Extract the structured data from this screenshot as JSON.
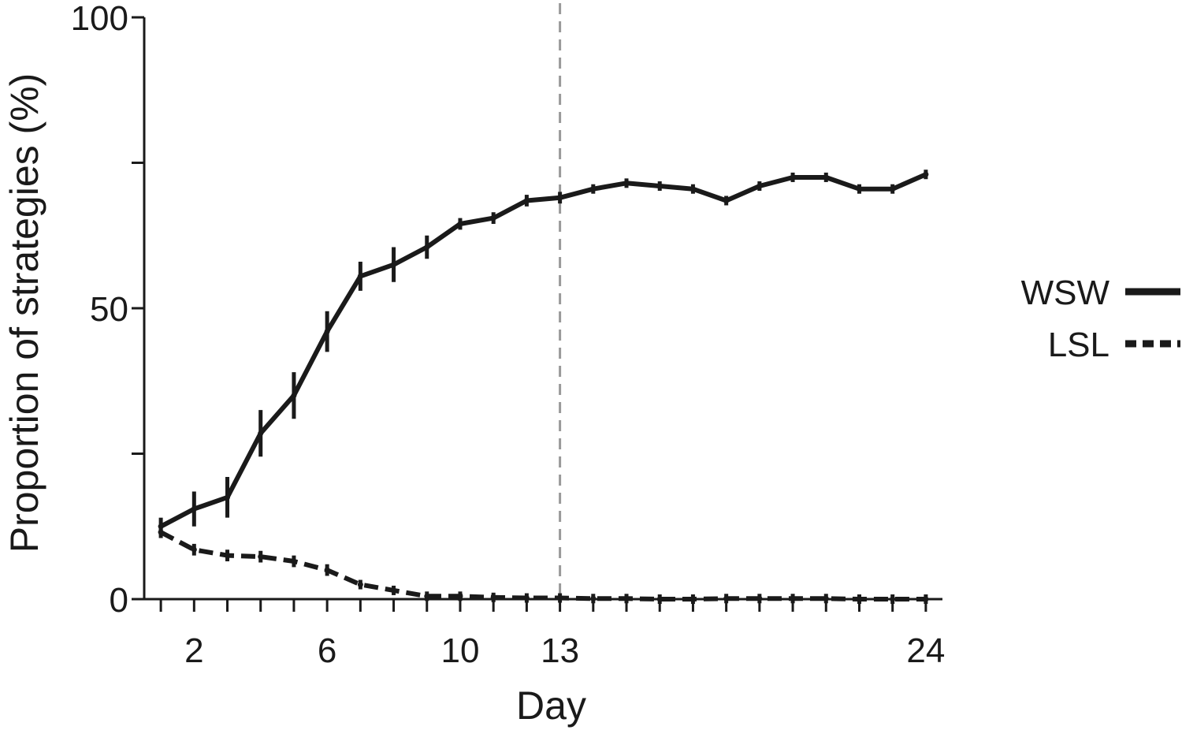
{
  "chart_data": {
    "type": "line",
    "title": "",
    "xlabel": "Day",
    "ylabel": "Proportion of strategies (%)",
    "xlim": [
      0.5,
      24.5
    ],
    "ylim": [
      0,
      100
    ],
    "x_ticks": [
      1,
      2,
      3,
      4,
      5,
      6,
      7,
      8,
      9,
      10,
      11,
      12,
      13,
      14,
      15,
      16,
      17,
      18,
      19,
      20,
      21,
      22,
      23,
      24
    ],
    "x_tick_labels": [
      {
        "x": 2,
        "label": "2"
      },
      {
        "x": 6,
        "label": "6"
      },
      {
        "x": 10,
        "label": "10"
      },
      {
        "x": 13,
        "label": "13"
      },
      {
        "x": 24,
        "label": "24"
      }
    ],
    "y_ticks": [
      0,
      25,
      50,
      75,
      100
    ],
    "y_tick_labels": [
      {
        "y": 0,
        "label": "0"
      },
      {
        "y": 50,
        "label": "50"
      },
      {
        "y": 100,
        "label": "100"
      }
    ],
    "reference_line": {
      "x": 13,
      "style": "dashed",
      "color": "#999999"
    },
    "grid": false,
    "legend_position": "right",
    "series": [
      {
        "name": "WSW",
        "style": "solid",
        "color": "#1a1a1a",
        "x": [
          1,
          2,
          3,
          4,
          5,
          6,
          7,
          8,
          9,
          10,
          11,
          12,
          13,
          14,
          15,
          16,
          17,
          18,
          19,
          20,
          21,
          22,
          23,
          24
        ],
        "values": [
          12.5,
          15.5,
          17.5,
          28.5,
          35,
          46,
          55.5,
          57.5,
          60.5,
          64.5,
          65.5,
          68.5,
          69,
          70.5,
          71.5,
          71,
          70.5,
          68.5,
          71,
          72.5,
          72.5,
          70.5,
          70.5,
          73
        ],
        "errors": [
          1.5,
          3,
          3.5,
          4,
          4,
          3.5,
          2.5,
          3,
          2,
          1,
          1,
          1,
          1,
          0.5,
          0.5,
          0.5,
          0.5,
          0.5,
          0.5,
          0.5,
          0.5,
          0.5,
          0.5,
          0.7
        ]
      },
      {
        "name": "LSL",
        "style": "dashed",
        "color": "#1a1a1a",
        "x": [
          1,
          2,
          3,
          4,
          5,
          6,
          7,
          8,
          9,
          10,
          11,
          12,
          13,
          14,
          15,
          16,
          17,
          18,
          19,
          20,
          21,
          22,
          23,
          24
        ],
        "values": [
          11.5,
          8.5,
          7.5,
          7.3,
          6.5,
          5,
          2.5,
          1.5,
          0.5,
          0.5,
          0.3,
          0.2,
          0.2,
          0.1,
          0.1,
          0,
          0,
          0.1,
          0.1,
          0.1,
          0.1,
          0,
          0,
          0
        ],
        "errors": [
          1,
          1,
          1,
          1,
          1,
          1,
          0.7,
          0.5,
          0.3,
          0.3,
          0.2,
          0.2,
          0.2,
          0.1,
          0.1,
          0.1,
          0.1,
          0.1,
          0.1,
          0.1,
          0.1,
          0.1,
          0.1,
          0.1
        ]
      }
    ]
  }
}
